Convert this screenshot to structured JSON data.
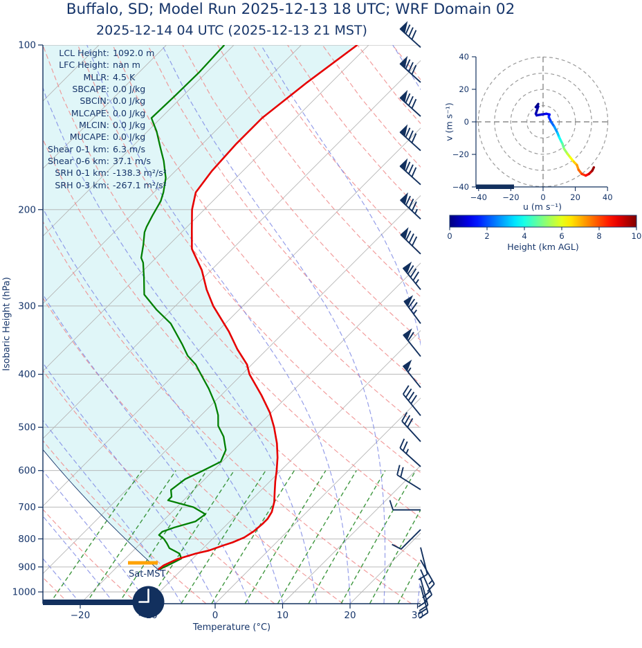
{
  "header": {
    "title": "Buffalo, SD; Model Run 2025-12-13 18 UTC; WRF Domain 02",
    "subtitle": "2025-12-14 04 UTC  (2025-12-13 21 MST)"
  },
  "stats": [
    {
      "label": "LCL Height:",
      "value": "1092.0 m"
    },
    {
      "label": "LFC Height:",
      "value": "nan m"
    },
    {
      "label": "MLLR:",
      "value": "4.5 K"
    },
    {
      "label": "SBCAPE:",
      "value": "0.0 J/kg"
    },
    {
      "label": "SBCIN:",
      "value": "0.0 J/kg"
    },
    {
      "label": "MLCAPE:",
      "value": "0.0 J/kg"
    },
    {
      "label": "MLCIN:",
      "value": "0.0 J/kg"
    },
    {
      "label": "MUCAPE:",
      "value": "0.0 J/kg"
    },
    {
      "label": "Shear 0-1 km:",
      "value": "6.3 m/s"
    },
    {
      "label": "Shear 0-6 km:",
      "value": "37.1 m/s"
    },
    {
      "label": "SRH 0-1 km:",
      "value": "-138.3 m²/s²"
    },
    {
      "label": "SRH 0-3 km:",
      "value": "-267.1 m²/s²"
    }
  ],
  "colors": {
    "text_navy": "#16356a",
    "barb": "#12305e",
    "temperature": "#e60000",
    "dewpoint": "#007f00",
    "parcel": "#16356a",
    "fill_cyan": "#e0f6f8",
    "dry_adiabat": "#f08c8c",
    "moist_adiabat": "#7b86e3",
    "mixing_ratio": "#2a8c2a",
    "grid_gray": "#b0b0b0",
    "orange_marker": "#ffa200"
  },
  "chart_data": [
    {
      "id": "skewt",
      "type": "line",
      "xlabel": "Temperature (°C)",
      "ylabel": "Isobaric Height (hPa)",
      "xlim": [
        -25.5,
        30.5
      ],
      "pressure_lim": [
        1050,
        100
      ],
      "skew_deg": 45,
      "grid": true,
      "x_ticks": [
        {
          "v": -20,
          "label": "−20"
        },
        {
          "v": -10,
          "label": "−10"
        },
        {
          "v": 0,
          "label": "0"
        },
        {
          "v": 10,
          "label": "10"
        },
        {
          "v": 20,
          "label": "20"
        },
        {
          "v": 30,
          "label": "30"
        }
      ],
      "y_ticks": [
        100,
        200,
        300,
        400,
        500,
        600,
        700,
        800,
        900,
        1000
      ],
      "series": [
        {
          "name": "temperature",
          "units": "p_hPa,T_C",
          "points": [
            [
              100,
              -61.7
            ],
            [
              117,
              -63.6
            ],
            [
              136,
              -65.0
            ],
            [
              152,
              -65.0
            ],
            [
              170,
              -64.6
            ],
            [
              186,
              -63.8
            ],
            [
              200,
              -61.8
            ],
            [
              218,
              -58.8
            ],
            [
              236,
              -56.0
            ],
            [
              258,
              -51.4
            ],
            [
              280,
              -47.8
            ],
            [
              300,
              -44.4
            ],
            [
              334,
              -38.3
            ],
            [
              360,
              -34.4
            ],
            [
              384,
              -30.7
            ],
            [
              400,
              -28.9
            ],
            [
              437,
              -24.0
            ],
            [
              470,
              -20.2
            ],
            [
              500,
              -17.4
            ],
            [
              535,
              -14.6
            ],
            [
              568,
              -12.4
            ],
            [
              600,
              -10.6
            ],
            [
              628,
              -9.2
            ],
            [
              655,
              -7.8
            ],
            [
              685,
              -6.3
            ],
            [
              714,
              -5.2
            ],
            [
              735,
              -4.8
            ],
            [
              751,
              -4.8
            ],
            [
              775,
              -5.0
            ],
            [
              795,
              -5.5
            ],
            [
              812,
              -6.5
            ],
            [
              823,
              -7.5
            ],
            [
              840,
              -8.8
            ],
            [
              851,
              -10.3
            ],
            [
              871,
              -12.2
            ],
            [
              894,
              -13.3
            ],
            [
              910,
              -13.5
            ]
          ]
        },
        {
          "name": "dewpoint",
          "units": "p_hPa,Td_C",
          "points": [
            [
              100,
              -81.4
            ],
            [
              112,
              -81.1
            ],
            [
              124,
              -81.2
            ],
            [
              136,
              -81.4
            ],
            [
              144,
              -78.6
            ],
            [
              154,
              -75.7
            ],
            [
              163,
              -73.2
            ],
            [
              175,
              -70.4
            ],
            [
              186,
              -68.6
            ],
            [
              193,
              -67.7
            ],
            [
              205,
              -66.8
            ],
            [
              215,
              -66.0
            ],
            [
              220,
              -65.5
            ],
            [
              232,
              -63.8
            ],
            [
              245,
              -62.2
            ],
            [
              250,
              -61.2
            ],
            [
              266,
              -58.9
            ],
            [
              286,
              -56.3
            ],
            [
              305,
              -52.2
            ],
            [
              323,
              -48.1
            ],
            [
              352,
              -43.4
            ],
            [
              370,
              -40.8
            ],
            [
              384,
              -38.3
            ],
            [
              400,
              -36.1
            ],
            [
              425,
              -32.8
            ],
            [
              453,
              -29.6
            ],
            [
              475,
              -27.5
            ],
            [
              497,
              -25.9
            ],
            [
              520,
              -23.5
            ],
            [
              550,
              -21.2
            ],
            [
              578,
              -20.2
            ],
            [
              600,
              -21.5
            ],
            [
              622,
              -22.9
            ],
            [
              651,
              -23.4
            ],
            [
              670,
              -22.3
            ],
            [
              680,
              -22.3
            ],
            [
              700,
              -17.5
            ],
            [
              721,
              -14.7
            ],
            [
              743,
              -15.1
            ],
            [
              762,
              -17.3
            ],
            [
              776,
              -18.5
            ],
            [
              787,
              -18.5
            ],
            [
              800,
              -17.2
            ],
            [
              815,
              -16.1
            ],
            [
              832,
              -15.0
            ],
            [
              851,
              -12.7
            ],
            [
              869,
              -11.7
            ],
            [
              890,
              -12.5
            ],
            [
              908,
              -13.3
            ],
            [
              910,
              -13.5
            ]
          ]
        },
        {
          "name": "surface-parcel",
          "theta_k": 266.7,
          "p_start": 910
        }
      ],
      "wind_barbs": [
        [
          101,
          31,
          -28
        ],
        [
          117,
          31,
          -28
        ],
        [
          135,
          31,
          -28
        ],
        [
          156,
          31,
          -28
        ],
        [
          180,
          31,
          -28
        ],
        [
          208,
          31,
          -29
        ],
        [
          241,
          30,
          -29
        ],
        [
          280,
          27,
          -33
        ],
        [
          323,
          23,
          -31
        ],
        [
          371,
          20,
          -25
        ],
        [
          423,
          17,
          -21
        ],
        [
          476,
          13,
          -16
        ],
        [
          531,
          11,
          -12
        ],
        [
          590,
          10,
          -9
        ],
        [
          650,
          8,
          -5
        ],
        [
          708,
          5,
          0
        ],
        [
          769,
          3,
          3
        ],
        [
          829,
          -1,
          4
        ],
        [
          874,
          -4,
          7
        ],
        [
          910,
          -4,
          9
        ],
        [
          945,
          -3,
          11
        ],
        [
          975,
          -3,
          11
        ]
      ],
      "background": {
        "isotherms_c": {
          "from": -110,
          "to": 40,
          "step": 10
        },
        "dry_adiabats_k": {
          "from": 248,
          "to": 448,
          "step": 10
        },
        "moist_adiabats_c": {
          "from": -55,
          "to": 35,
          "step": 5
        },
        "mixing_ratios_gkg": [
          0.5,
          0.8,
          1.2,
          1.7,
          2.5,
          3.5,
          5,
          7,
          9.5,
          13,
          17,
          22
        ],
        "mixing_top_hpa": 600
      },
      "annotations": [
        {
          "text": "Sat-MST",
          "p_hPa": 890
        }
      ],
      "clock_time": "21:00"
    },
    {
      "id": "hodograph",
      "type": "line",
      "xlabel": "u (m s⁻¹)",
      "ylabel": "v (m s⁻¹)",
      "xlim": [
        -40,
        40
      ],
      "ylim": [
        -40,
        40
      ],
      "rings": [
        10,
        20,
        30,
        40
      ],
      "ticks": [
        {
          "v": -40,
          "label": "−40"
        },
        {
          "v": -20,
          "label": "−20"
        },
        {
          "v": 0,
          "label": "0"
        },
        {
          "v": 20,
          "label": "20"
        },
        {
          "v": 40,
          "label": "40"
        }
      ],
      "trace_h_u_v": [
        [
          0,
          -3,
          11
        ],
        [
          0.15,
          -4.5,
          9
        ],
        [
          0.3,
          -3,
          9.5
        ],
        [
          0.45,
          -4.5,
          5
        ],
        [
          0.6,
          -4,
          4
        ],
        [
          0.8,
          -1,
          4.5
        ],
        [
          1,
          2,
          5
        ],
        [
          1.2,
          4,
          4.5
        ],
        [
          1.5,
          3.5,
          3
        ],
        [
          2,
          5,
          0
        ],
        [
          2.5,
          7,
          -3
        ],
        [
          3,
          9,
          -7
        ],
        [
          3.5,
          10,
          -9.5
        ],
        [
          4,
          11,
          -11.5
        ],
        [
          4.5,
          12,
          -13.5
        ],
        [
          5,
          13,
          -16.5
        ],
        [
          5.5,
          15,
          -19.5
        ],
        [
          6,
          17,
          -22
        ],
        [
          6.5,
          19,
          -24.5
        ],
        [
          7,
          21,
          -26.5
        ],
        [
          7.5,
          22,
          -29.5
        ],
        [
          8,
          24,
          -32
        ],
        [
          8.5,
          26.5,
          -33
        ],
        [
          9,
          28.5,
          -32
        ],
        [
          9.5,
          30.5,
          -30
        ],
        [
          10,
          31.5,
          -28
        ]
      ],
      "colorbar": {
        "label": "Height (km AGL)",
        "ticks": [
          0,
          2,
          4,
          6,
          8,
          10
        ],
        "cmap": "jet",
        "range_km": [
          0,
          10
        ]
      }
    }
  ]
}
